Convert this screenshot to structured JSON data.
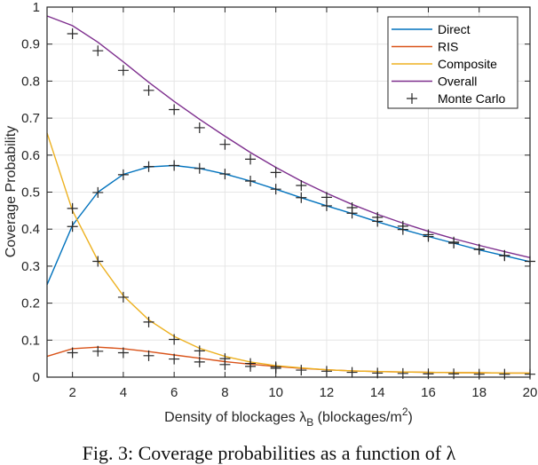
{
  "chart_data": {
    "type": "line",
    "title": "",
    "xlabel": "Density of blockages λB (blockages/m²)",
    "xlabel_parts": {
      "main": "Density of blockages ",
      "symbol": "λ",
      "subscript": "B",
      "unit_prefix": " (blockages/m",
      "superscript": "2",
      "unit_suffix": ")"
    },
    "ylabel": "Coverage Probability",
    "xlim": [
      1,
      20
    ],
    "ylim": [
      0,
      1
    ],
    "xticks": [
      2,
      4,
      6,
      8,
      10,
      12,
      14,
      16,
      18,
      20
    ],
    "yticks": [
      0,
      0.1,
      0.2,
      0.3,
      0.4,
      0.5,
      0.6,
      0.7,
      0.8,
      0.9,
      1
    ],
    "ytick_labels": [
      "0",
      "0.1",
      "0.2",
      "0.3",
      "0.4",
      "0.5",
      "0.6",
      "0.7",
      "0.8",
      "0.9",
      "1"
    ],
    "grid": true,
    "legend_position": "upper right",
    "x": [
      1,
      2,
      3,
      4,
      5,
      6,
      7,
      8,
      9,
      10,
      11,
      12,
      13,
      14,
      15,
      16,
      17,
      18,
      19,
      20
    ],
    "series": [
      {
        "name": "Direct",
        "color": "#0072BD",
        "style": "line",
        "values": [
          0.25,
          0.41,
          0.5,
          0.548,
          0.568,
          0.572,
          0.564,
          0.549,
          0.53,
          0.508,
          0.485,
          0.463,
          0.442,
          0.42,
          0.399,
          0.38,
          0.362,
          0.344,
          0.328,
          0.312
        ]
      },
      {
        "name": "RIS",
        "color": "#D95319",
        "style": "line",
        "values": [
          0.056,
          0.077,
          0.081,
          0.077,
          0.069,
          0.06,
          0.051,
          0.042,
          0.035,
          0.029,
          0.024,
          0.02,
          0.017,
          0.015,
          0.014,
          0.013,
          0.012,
          0.012,
          0.011,
          0.011
        ]
      },
      {
        "name": "Composite",
        "color": "#EDB120",
        "style": "line",
        "values": [
          0.66,
          0.45,
          0.315,
          0.22,
          0.155,
          0.11,
          0.078,
          0.056,
          0.041,
          0.031,
          0.025,
          0.02,
          0.017,
          0.015,
          0.014,
          0.013,
          0.012,
          0.012,
          0.011,
          0.011
        ]
      },
      {
        "name": "Overall",
        "color": "#7E2F8E",
        "style": "line",
        "values": [
          0.976,
          0.95,
          0.905,
          0.852,
          0.797,
          0.745,
          0.697,
          0.651,
          0.607,
          0.567,
          0.53,
          0.497,
          0.467,
          0.44,
          0.416,
          0.394,
          0.374,
          0.356,
          0.339,
          0.323
        ]
      },
      {
        "name": "Monte Carlo",
        "color": "#262626",
        "style": "marker-plus",
        "points": [
          [
            2,
            0.928
          ],
          [
            3,
            0.882
          ],
          [
            4,
            0.829
          ],
          [
            5,
            0.775
          ],
          [
            6,
            0.723
          ],
          [
            7,
            0.674
          ],
          [
            8,
            0.629
          ],
          [
            9,
            0.589
          ],
          [
            10,
            0.553
          ],
          [
            11,
            0.518
          ],
          [
            12,
            0.486
          ],
          [
            13,
            0.458
          ],
          [
            14,
            0.432
          ],
          [
            15,
            0.408
          ],
          [
            16,
            0.385
          ],
          [
            17,
            0.365
          ],
          [
            18,
            0.346
          ],
          [
            19,
            0.329
          ],
          [
            20,
            0.313
          ],
          [
            2,
            0.456
          ],
          [
            2,
            0.407
          ],
          [
            3,
            0.499
          ],
          [
            4,
            0.547
          ],
          [
            5,
            0.569
          ],
          [
            6,
            0.572
          ],
          [
            7,
            0.564
          ],
          [
            8,
            0.549
          ],
          [
            9,
            0.53
          ],
          [
            10,
            0.508
          ],
          [
            11,
            0.485
          ],
          [
            12,
            0.463
          ],
          [
            13,
            0.443
          ],
          [
            14,
            0.421
          ],
          [
            15,
            0.399
          ],
          [
            16,
            0.38
          ],
          [
            17,
            0.362
          ],
          [
            18,
            0.345
          ],
          [
            19,
            0.328
          ],
          [
            3,
            0.313
          ],
          [
            4,
            0.216
          ],
          [
            5,
            0.149
          ],
          [
            6,
            0.102
          ],
          [
            7,
            0.071
          ],
          [
            8,
            0.05
          ],
          [
            9,
            0.037
          ],
          [
            10,
            0.028
          ],
          [
            2,
            0.066
          ],
          [
            3,
            0.07
          ],
          [
            4,
            0.066
          ],
          [
            5,
            0.058
          ],
          [
            6,
            0.049
          ],
          [
            7,
            0.041
          ],
          [
            8,
            0.034
          ],
          [
            9,
            0.029
          ],
          [
            10,
            0.024
          ],
          [
            11,
            0.019
          ],
          [
            12,
            0.016
          ],
          [
            13,
            0.013
          ],
          [
            14,
            0.011
          ],
          [
            15,
            0.01
          ],
          [
            16,
            0.009
          ],
          [
            17,
            0.009
          ],
          [
            18,
            0.008
          ],
          [
            19,
            0.008
          ],
          [
            20,
            0.008
          ]
        ]
      }
    ]
  },
  "legend": {
    "items": [
      {
        "label": "Direct",
        "color": "#0072BD",
        "kind": "line"
      },
      {
        "label": "RIS",
        "color": "#D95319",
        "kind": "line"
      },
      {
        "label": "Composite",
        "color": "#EDB120",
        "kind": "line"
      },
      {
        "label": "Overall",
        "color": "#7E2F8E",
        "kind": "line"
      },
      {
        "label": "Monte Carlo",
        "color": "#262626",
        "kind": "marker"
      }
    ]
  },
  "caption": "Fig. 3: Coverage probabilities as a function of λ"
}
